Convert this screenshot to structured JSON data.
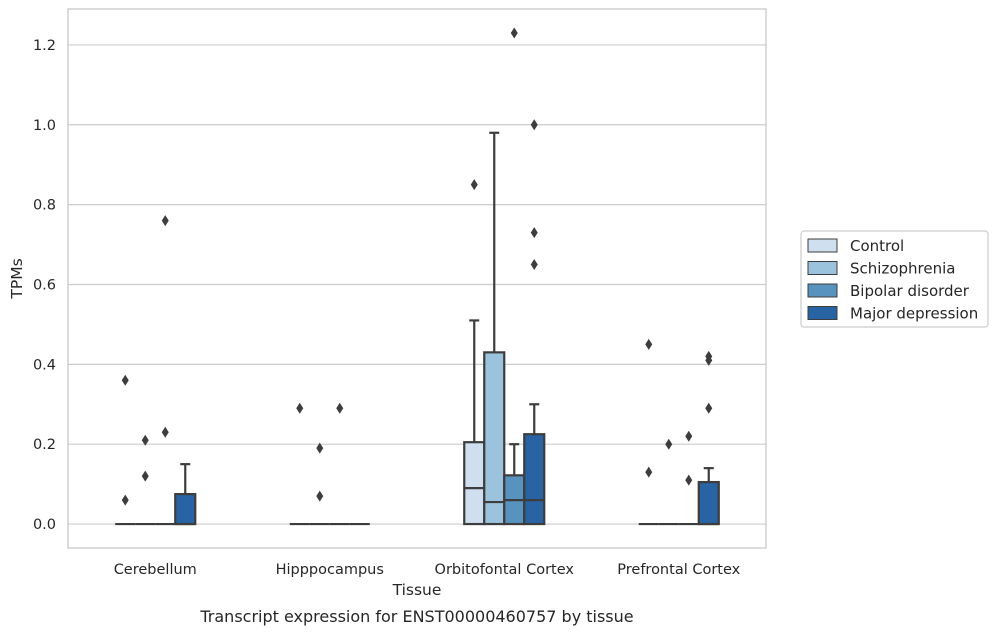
{
  "chart_data": {
    "type": "box",
    "caption": "Transcript expression for ENST00000460757 by tissue",
    "xlabel": "Tissue",
    "ylabel": "TPMs",
    "ylim": [
      -0.06,
      1.29
    ],
    "yticks": [
      0.0,
      0.2,
      0.4,
      0.6,
      0.8,
      1.0,
      1.2
    ],
    "ytick_labels": [
      "0.0",
      "0.2",
      "0.4",
      "0.6",
      "0.8",
      "1.0",
      "1.2"
    ],
    "grid": true,
    "legend_position": "right",
    "categories": [
      "Cerebellum",
      "Hipppocampus",
      "Orbitofontal Cortex",
      "Prefrontal Cortex"
    ],
    "series": [
      {
        "name": "Control",
        "color": "#cfdff0",
        "boxes": [
          {
            "q1": 0,
            "median": 0,
            "q3": 0,
            "whislo": 0,
            "whishi": 0,
            "fliers": [
              0.36,
              0.06
            ]
          },
          {
            "q1": 0,
            "median": 0,
            "q3": 0,
            "whislo": 0,
            "whishi": 0,
            "fliers": [
              0.29
            ]
          },
          {
            "q1": 0,
            "median": 0.09,
            "q3": 0.205,
            "whislo": 0,
            "whishi": 0.51,
            "fliers": [
              0.85
            ]
          },
          {
            "q1": 0,
            "median": 0,
            "q3": 0,
            "whislo": 0,
            "whishi": 0,
            "fliers": [
              0.45,
              0.13
            ]
          }
        ]
      },
      {
        "name": "Schizophrenia",
        "color": "#9cc3dd",
        "boxes": [
          {
            "q1": 0,
            "median": 0,
            "q3": 0,
            "whislo": 0,
            "whishi": 0,
            "fliers": [
              0.21,
              0.12
            ]
          },
          {
            "q1": 0,
            "median": 0,
            "q3": 0,
            "whislo": 0,
            "whishi": 0,
            "fliers": [
              0.19,
              0.07
            ]
          },
          {
            "q1": 0,
            "median": 0.055,
            "q3": 0.43,
            "whislo": 0,
            "whishi": 0.98,
            "fliers": []
          },
          {
            "q1": 0,
            "median": 0,
            "q3": 0,
            "whislo": 0,
            "whishi": 0,
            "fliers": [
              0.2
            ]
          }
        ]
      },
      {
        "name": "Bipolar disorder",
        "color": "#5893c0",
        "boxes": [
          {
            "q1": 0,
            "median": 0,
            "q3": 0,
            "whislo": 0,
            "whishi": 0,
            "fliers": [
              0.76,
              0.23
            ]
          },
          {
            "q1": 0,
            "median": 0,
            "q3": 0,
            "whislo": 0,
            "whishi": 0,
            "fliers": [
              0.29
            ]
          },
          {
            "q1": 0,
            "median": 0.06,
            "q3": 0.122,
            "whislo": 0,
            "whishi": 0.2,
            "fliers": [
              1.23
            ]
          },
          {
            "q1": 0,
            "median": 0,
            "q3": 0,
            "whislo": 0,
            "whishi": 0,
            "fliers": [
              0.22,
              0.11
            ]
          }
        ]
      },
      {
        "name": "Major depression",
        "color": "#2864a3",
        "boxes": [
          {
            "q1": 0,
            "median": 0,
            "q3": 0.075,
            "whislo": 0,
            "whishi": 0.15,
            "fliers": []
          },
          {
            "q1": 0,
            "median": 0,
            "q3": 0,
            "whislo": 0,
            "whishi": 0,
            "fliers": []
          },
          {
            "q1": 0,
            "median": 0.06,
            "q3": 0.225,
            "whislo": 0,
            "whishi": 0.3,
            "fliers": [
              1.0,
              0.73,
              0.65
            ]
          },
          {
            "q1": 0,
            "median": 0,
            "q3": 0.105,
            "whislo": 0,
            "whishi": 0.14,
            "fliers": [
              0.42,
              0.41,
              0.29
            ]
          }
        ]
      }
    ]
  }
}
